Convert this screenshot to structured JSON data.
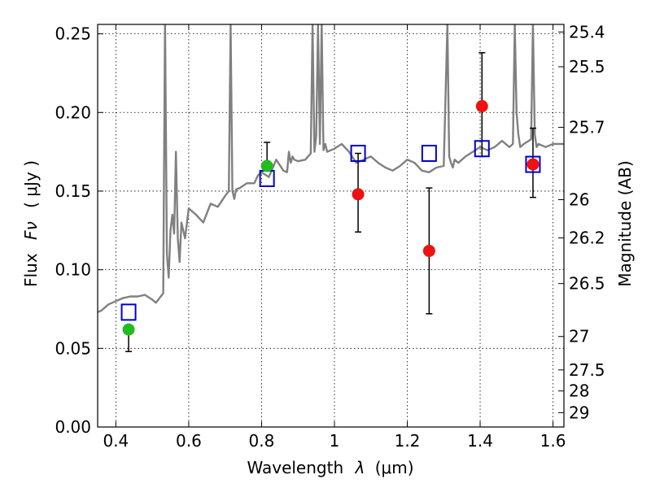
{
  "chart_data": {
    "type": "scatter",
    "title": "",
    "xlabel": "Wavelength",
    "xlabel_symbol": "λ",
    "xlabel_unit": "(μm)",
    "ylabel": "Flux",
    "ylabel_symbol": "Fν",
    "ylabel_unit": "( μJy )",
    "y2label": "Magnitude (AB)",
    "xlim": [
      0.35,
      1.63
    ],
    "ylim": [
      0.0,
      0.256
    ],
    "grid": true,
    "x_ticks": [
      {
        "value": 0.4,
        "label": "0.4"
      },
      {
        "value": 0.6,
        "label": "0.6"
      },
      {
        "value": 0.8,
        "label": "0.8"
      },
      {
        "value": 1.0,
        "label": "1"
      },
      {
        "value": 1.2,
        "label": "1.2"
      },
      {
        "value": 1.4,
        "label": "1.4"
      },
      {
        "value": 1.6,
        "label": "1.6"
      }
    ],
    "y_ticks": [
      {
        "value": 0.0,
        "label": "0.00"
      },
      {
        "value": 0.05,
        "label": "0.05"
      },
      {
        "value": 0.1,
        "label": "0.10"
      },
      {
        "value": 0.15,
        "label": "0.15"
      },
      {
        "value": 0.2,
        "label": "0.20"
      },
      {
        "value": 0.25,
        "label": "0.25"
      }
    ],
    "y2_ticks": [
      {
        "value": 25.4,
        "label": "25.4"
      },
      {
        "value": 25.5,
        "label": "25.5"
      },
      {
        "value": 25.7,
        "label": "25.7"
      },
      {
        "value": 26,
        "label": "26"
      },
      {
        "value": 26.2,
        "label": "26.2"
      },
      {
        "value": 26.5,
        "label": "26.5"
      },
      {
        "value": 27,
        "label": "27"
      },
      {
        "value": 27.5,
        "label": "27.5"
      },
      {
        "value": 28,
        "label": "28"
      },
      {
        "value": 29,
        "label": "29"
      }
    ],
    "series": [
      {
        "kind": "line",
        "color": "#808080",
        "x": [
          0.35,
          0.36,
          0.38,
          0.4,
          0.42,
          0.44,
          0.46,
          0.48,
          0.5,
          0.51,
          0.52,
          0.53,
          0.535,
          0.54,
          0.545,
          0.55,
          0.555,
          0.56,
          0.565,
          0.57,
          0.575,
          0.58,
          0.59,
          0.6,
          0.62,
          0.64,
          0.66,
          0.68,
          0.7,
          0.71,
          0.715,
          0.72,
          0.725,
          0.73,
          0.74,
          0.76,
          0.78,
          0.79,
          0.8,
          0.82,
          0.84,
          0.86,
          0.87,
          0.875,
          0.88,
          0.885,
          0.89,
          0.9,
          0.92,
          0.935,
          0.94,
          0.945,
          0.95,
          0.955,
          0.96,
          0.965,
          0.97,
          0.975,
          0.98,
          1.0,
          1.02,
          1.04,
          1.06,
          1.08,
          1.1,
          1.12,
          1.14,
          1.16,
          1.18,
          1.2,
          1.22,
          1.24,
          1.26,
          1.28,
          1.3,
          1.31,
          1.315,
          1.32,
          1.325,
          1.33,
          1.34,
          1.36,
          1.38,
          1.4,
          1.42,
          1.44,
          1.46,
          1.48,
          1.49,
          1.495,
          1.5,
          1.505,
          1.51,
          1.52,
          1.54,
          1.545,
          1.55,
          1.555,
          1.56,
          1.58,
          1.6,
          1.63
        ],
        "y": [
          0.073,
          0.074,
          0.078,
          0.08,
          0.082,
          0.083,
          0.083,
          0.084,
          0.081,
          0.079,
          0.082,
          0.085,
          0.26,
          0.11,
          0.095,
          0.125,
          0.135,
          0.123,
          0.175,
          0.12,
          0.105,
          0.13,
          0.12,
          0.139,
          0.135,
          0.13,
          0.142,
          0.14,
          0.147,
          0.15,
          0.256,
          0.15,
          0.145,
          0.151,
          0.152,
          0.155,
          0.155,
          0.16,
          0.162,
          0.159,
          0.17,
          0.163,
          0.162,
          0.175,
          0.168,
          0.172,
          0.17,
          0.169,
          0.17,
          0.174,
          0.256,
          0.175,
          0.185,
          0.256,
          0.18,
          0.256,
          0.176,
          0.18,
          0.175,
          0.177,
          0.18,
          0.175,
          0.168,
          0.17,
          0.172,
          0.168,
          0.165,
          0.163,
          0.166,
          0.17,
          0.168,
          0.163,
          0.162,
          0.165,
          0.166,
          0.256,
          0.172,
          0.168,
          0.165,
          0.17,
          0.168,
          0.172,
          0.175,
          0.178,
          0.176,
          0.178,
          0.182,
          0.178,
          0.18,
          0.256,
          0.2,
          0.186,
          0.178,
          0.18,
          0.183,
          0.256,
          0.186,
          0.178,
          0.18,
          0.178,
          0.18,
          0.18
        ]
      },
      {
        "kind": "scatter",
        "marker": "open-square",
        "color": "#0000cc",
        "x": [
          0.435,
          0.815,
          1.065,
          1.26,
          1.405,
          1.545
        ],
        "y": [
          0.073,
          0.158,
          0.174,
          0.174,
          0.177,
          0.167
        ]
      },
      {
        "kind": "scatter",
        "marker": "circle",
        "color": "#22bb22",
        "x": [
          0.435,
          0.815
        ],
        "y": [
          0.062,
          0.166
        ],
        "yerr": [
          [
            0.014,
            0.0
          ],
          [
            0.0,
            0.015
          ]
        ]
      },
      {
        "kind": "scatter",
        "marker": "circle",
        "color": "#ee1111",
        "x": [
          1.065,
          1.26,
          1.405,
          1.545
        ],
        "y": [
          0.148,
          0.112,
          0.204,
          0.167
        ],
        "yerr": [
          [
            0.024,
            0.026
          ],
          [
            0.04,
            0.04
          ],
          [
            0.032,
            0.034
          ],
          [
            0.021,
            0.023
          ]
        ]
      }
    ]
  }
}
